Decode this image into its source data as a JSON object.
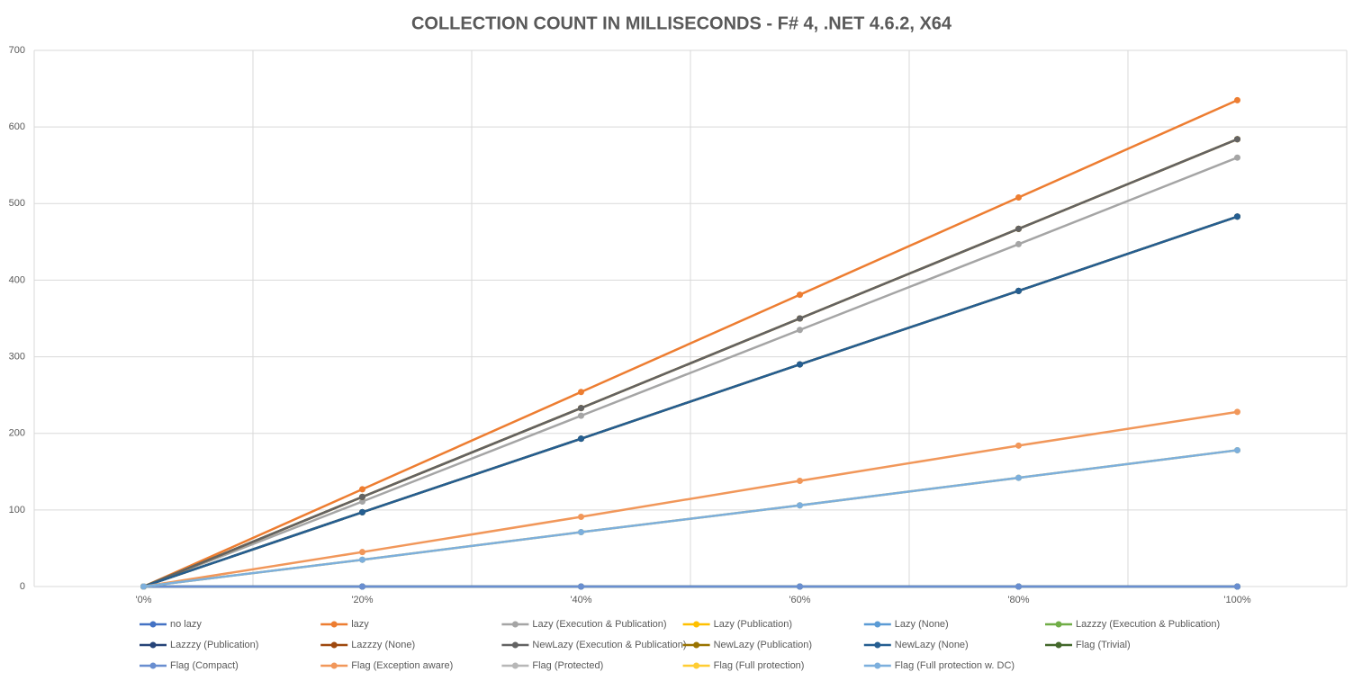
{
  "chart_data": {
    "type": "line",
    "title": "COLLECTION COUNT IN MILLISECONDS - F# 4, .NET 4.6.2, X64",
    "categories": [
      "'0%",
      "'20%",
      "'40%",
      "'60%",
      "'80%",
      "'100%"
    ],
    "ylim": [
      0,
      700
    ],
    "yticks": [
      0,
      100,
      200,
      300,
      400,
      500,
      600,
      700
    ],
    "grid": true,
    "legend": "bottom",
    "markers": true,
    "series": [
      {
        "name": "no lazy",
        "color": "#4472C4",
        "values": [
          0,
          0,
          0,
          0,
          0,
          0
        ]
      },
      {
        "name": "lazy",
        "color": "#ED7D31",
        "values": [
          0,
          127,
          254,
          381,
          508,
          635
        ]
      },
      {
        "name": "Lazy (Execution & Publication)",
        "color": "#A5A5A5",
        "values": [
          0,
          111,
          223,
          335,
          447,
          560
        ]
      },
      {
        "name": "Lazy (Publication)",
        "color": "#FFC000",
        "values": [
          0,
          117,
          233,
          350,
          467,
          584
        ]
      },
      {
        "name": "Lazy (None)",
        "color": "#5B9BD5",
        "values": [
          0,
          97,
          193,
          290,
          386,
          483
        ]
      },
      {
        "name": "Lazzzy (Execution & Publication)",
        "color": "#70AD47",
        "values": [
          0,
          117,
          233,
          350,
          467,
          584
        ]
      },
      {
        "name": "Lazzzy (Publication)",
        "color": "#264478",
        "values": [
          0,
          97,
          193,
          290,
          386,
          483
        ]
      },
      {
        "name": "Lazzzy (None)",
        "color": "#9E480E",
        "values": [
          0,
          117,
          233,
          350,
          467,
          584
        ]
      },
      {
        "name": "NewLazy (Execution & Publication)",
        "color": "#636363",
        "values": [
          0,
          117,
          233,
          350,
          467,
          584
        ]
      },
      {
        "name": "NewLazy (Publication)",
        "color": "#997300",
        "values": [
          0,
          97,
          193,
          290,
          386,
          483
        ]
      },
      {
        "name": "NewLazy (None)",
        "color": "#255E91",
        "values": [
          0,
          97,
          193,
          290,
          386,
          483
        ]
      },
      {
        "name": "Flag (Trivial)",
        "color": "#43682B",
        "values": [
          0,
          0,
          0,
          0,
          0,
          0
        ]
      },
      {
        "name": "Flag (Compact)",
        "color": "#698ED0",
        "values": [
          0,
          0,
          0,
          0,
          0,
          0
        ]
      },
      {
        "name": "Flag (Exception aware)",
        "color": "#F1975A",
        "values": [
          0,
          45,
          91,
          138,
          184,
          228
        ]
      },
      {
        "name": "Flag (Protected)",
        "color": "#B7B7B7",
        "values": [
          0,
          35,
          71,
          106,
          142,
          178
        ]
      },
      {
        "name": "Flag (Full protection)",
        "color": "#FFCD33",
        "values": [
          0,
          35,
          71,
          106,
          142,
          178
        ]
      },
      {
        "name": "Flag (Full protection w. DC)",
        "color": "#7CAFDD",
        "values": [
          0,
          35,
          71,
          106,
          142,
          178
        ]
      }
    ]
  }
}
